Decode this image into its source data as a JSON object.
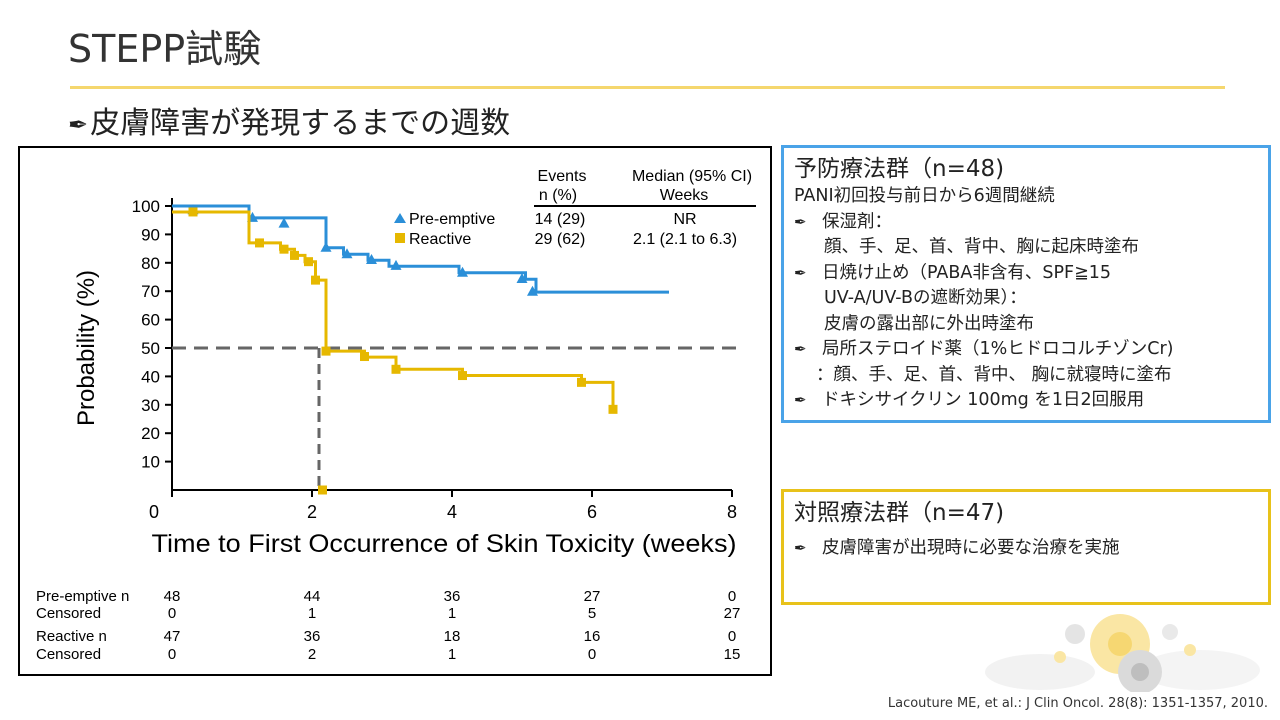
{
  "page": {
    "title": "STEPP試験",
    "subtitle_icon": "pen-icon",
    "subtitle": "皮膚障害が発現するまでの週数",
    "citation": "Lacouture ME, et al.: J Clin Oncol. 28(8): 1351-1357, 2010."
  },
  "chart_data": {
    "type": "line",
    "subtype": "kaplan-meier",
    "ylabel": "Probability (%)",
    "xlabel": "Time to First Occurrence of Skin Toxicity (weeks)",
    "xlim": [
      0,
      8
    ],
    "ylim": [
      0,
      100
    ],
    "x_ticks": [
      "0",
      "2",
      "4",
      "6",
      "8"
    ],
    "y_ticks": [
      "10",
      "20",
      "30",
      "40",
      "50",
      "60",
      "70",
      "80",
      "90",
      "100"
    ],
    "median_line_y": 50,
    "median_drop_x": 2.1,
    "legend": {
      "header_events": [
        "Events",
        "n (%)"
      ],
      "header_median": [
        "Median (95% CI)",
        "Weeks"
      ],
      "rows": [
        {
          "name": "Pre-emptive",
          "events": "14 (29)",
          "median": "NR"
        },
        {
          "name": "Reactive",
          "events": "29 (62)",
          "median": "2.1 (2.1 to 6.3)"
        }
      ]
    },
    "series": [
      {
        "name": "Pre-emptive",
        "color": "#2b8fd8",
        "marker": "triangle",
        "steps": [
          [
            0,
            100
          ],
          [
            1.1,
            100
          ],
          [
            1.1,
            95.8
          ],
          [
            2.2,
            95.8
          ],
          [
            2.2,
            85.3
          ],
          [
            2.45,
            85.3
          ],
          [
            2.45,
            83
          ],
          [
            2.8,
            83
          ],
          [
            2.8,
            80.9
          ],
          [
            3.1,
            80.9
          ],
          [
            3.1,
            78.8
          ],
          [
            4.1,
            78.8
          ],
          [
            4.1,
            76.5
          ],
          [
            5.05,
            76.5
          ],
          [
            5.05,
            74.2
          ],
          [
            5.2,
            74.2
          ],
          [
            5.2,
            69.7
          ],
          [
            7.1,
            69.7
          ]
        ],
        "censored": [
          [
            0.3,
            98.5
          ],
          [
            1.15,
            95.8
          ],
          [
            1.6,
            93.8
          ],
          [
            2.2,
            85.3
          ],
          [
            2.5,
            83
          ],
          [
            2.85,
            81
          ],
          [
            3.2,
            78.9
          ],
          [
            4.15,
            76.5
          ],
          [
            5.0,
            74.3
          ],
          [
            5.15,
            69.8
          ]
        ]
      },
      {
        "name": "Reactive",
        "color": "#e6b800",
        "marker": "square",
        "steps": [
          [
            0,
            97.9
          ],
          [
            1.1,
            97.9
          ],
          [
            1.1,
            87
          ],
          [
            1.55,
            87
          ],
          [
            1.55,
            84.8
          ],
          [
            1.75,
            84.8
          ],
          [
            1.75,
            82.6
          ],
          [
            1.9,
            82.6
          ],
          [
            1.9,
            80.4
          ],
          [
            2.05,
            80.4
          ],
          [
            2.05,
            73.9
          ],
          [
            2.2,
            73.9
          ],
          [
            2.2,
            48.9
          ],
          [
            2.75,
            48.9
          ],
          [
            2.75,
            46.8
          ],
          [
            3.2,
            46.8
          ],
          [
            3.2,
            42.5
          ],
          [
            4.15,
            42.5
          ],
          [
            4.15,
            40.3
          ],
          [
            5.85,
            40.3
          ],
          [
            5.85,
            37.9
          ],
          [
            6.3,
            37.9
          ],
          [
            6.3,
            28.4
          ]
        ],
        "censored": [
          [
            0.3,
            97.9
          ],
          [
            1.25,
            87
          ],
          [
            1.6,
            84.8
          ],
          [
            1.75,
            82.6
          ],
          [
            1.95,
            80.4
          ],
          [
            2.05,
            73.9
          ],
          [
            2.2,
            48.9
          ],
          [
            2.75,
            47
          ],
          [
            3.2,
            42.5
          ],
          [
            4.15,
            40.3
          ],
          [
            5.85,
            37.9
          ],
          [
            6.3,
            28.4
          ],
          [
            2.15,
            0
          ]
        ]
      }
    ],
    "risk_table": {
      "x_values": [
        0,
        2,
        4,
        6,
        8
      ],
      "rows": [
        {
          "label": "Pre-emptive n",
          "values": [
            "48",
            "44",
            "36",
            "27",
            "0"
          ]
        },
        {
          "label": "Censored",
          "values": [
            "0",
            "1",
            "1",
            "5",
            "27"
          ]
        },
        {
          "label": "Reactive n",
          "values": [
            "47",
            "36",
            "18",
            "16",
            "0"
          ]
        },
        {
          "label": "Censored",
          "values": [
            "0",
            "2",
            "1",
            "0",
            "15"
          ]
        }
      ]
    }
  },
  "preventive_box": {
    "title": "予防療法群（n=48)",
    "lead": "PANI初回投与前日から6週間継続",
    "items": [
      {
        "icon": "pen-icon",
        "label": "保湿剤：",
        "detail": [
          "顔、手、足、首、背中、胸に起床時塗布"
        ]
      },
      {
        "icon": "pen-icon",
        "label": "日焼け止め（PABA非含有、SPF≧15",
        "detail": [
          "UV-A/UV-Bの遮断効果）：",
          "皮膚の露出部に外出時塗布"
        ]
      },
      {
        "icon": "pen-icon",
        "label": "局所ステロイド薬（1%ヒドロコルチゾンCr)",
        "detail": [
          "：顔、手、足、首、背中、 胸に就寝時に塗布"
        ]
      },
      {
        "icon": "pen-icon",
        "label": "ドキシサイクリン 100mg を1日2回服用",
        "detail": []
      }
    ]
  },
  "control_box": {
    "title": "対照療法群（n=47)",
    "items": [
      {
        "icon": "pen-icon",
        "label": "皮膚障害が出現時に必要な治療を実施"
      }
    ]
  },
  "colors": {
    "title_rule": "#f5d76e",
    "preventive_border": "#4aa3e8",
    "control_border": "#e8c21a"
  }
}
